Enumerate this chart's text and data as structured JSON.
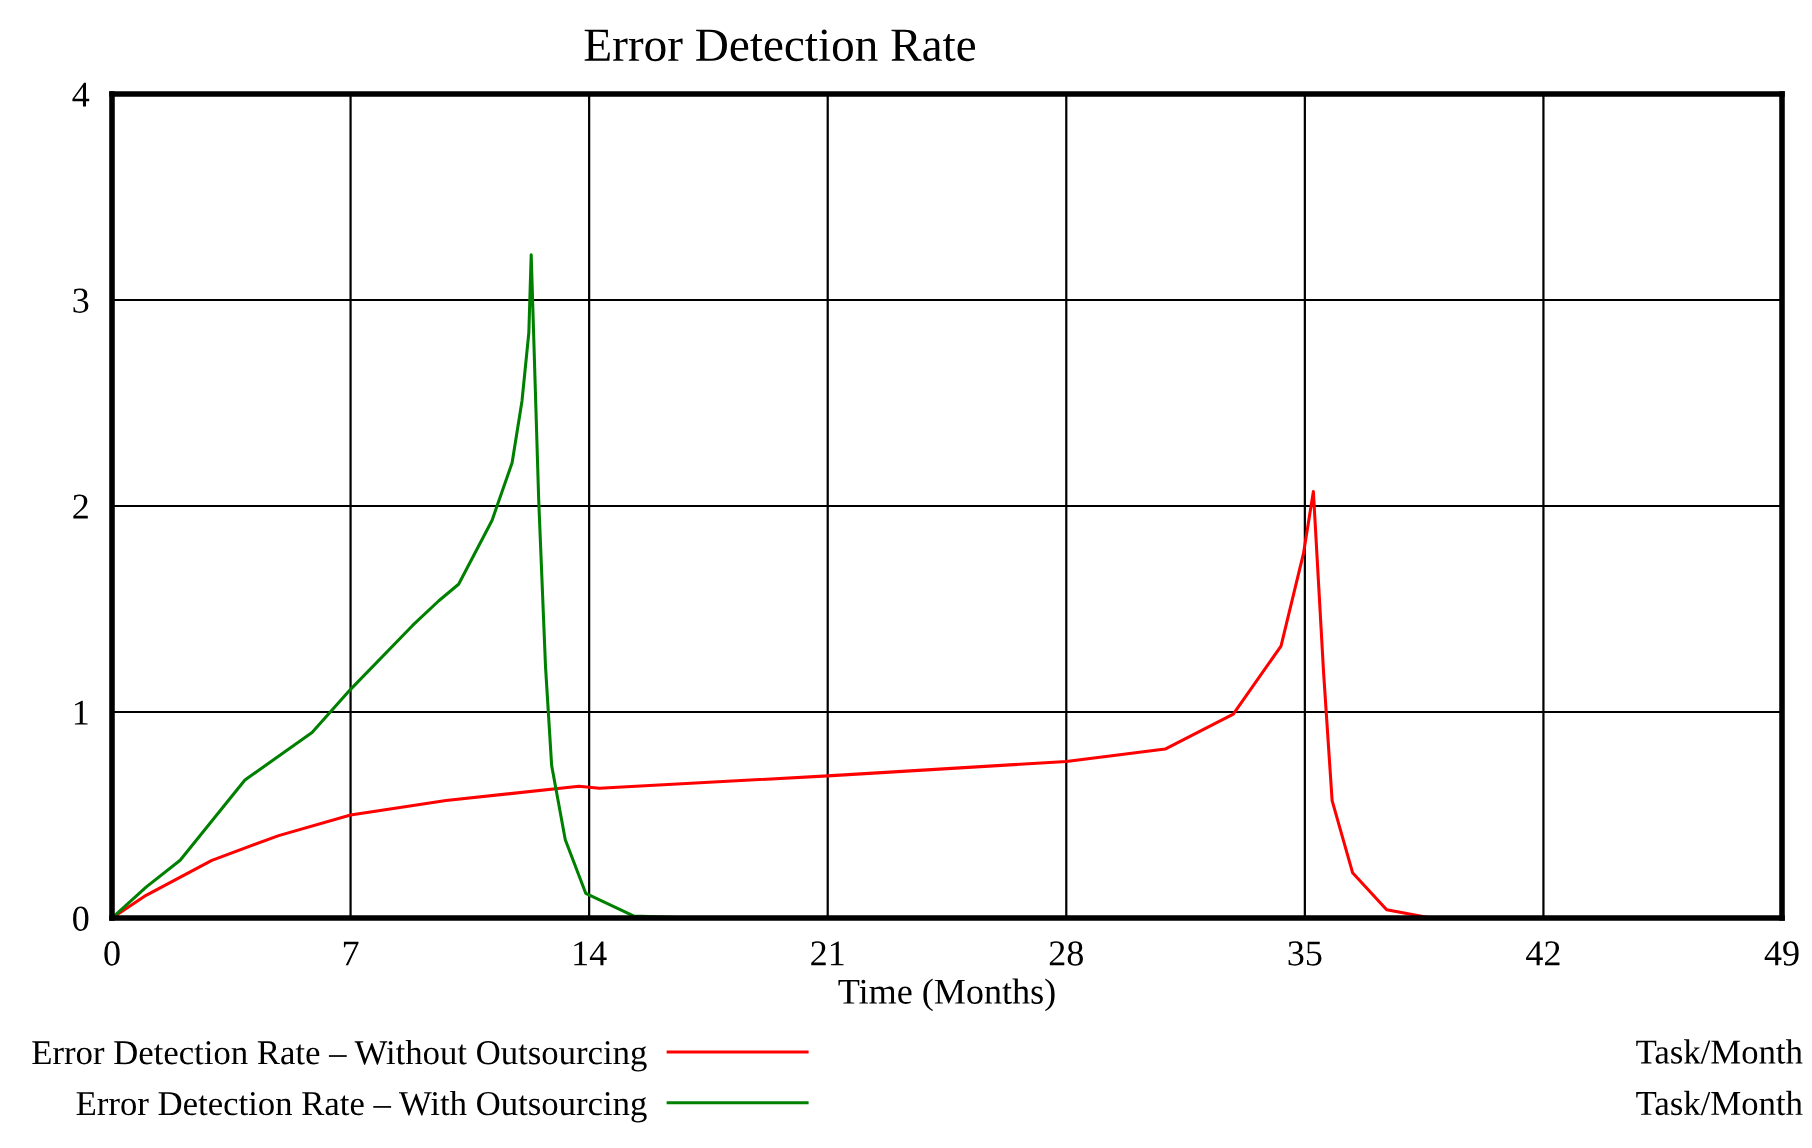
{
  "chart_data": {
    "type": "line",
    "title": "Error Detection Rate",
    "xlabel": "Time (Months)",
    "xlim": [
      0,
      49
    ],
    "xticks": [
      0,
      7,
      14,
      21,
      28,
      35,
      42,
      49
    ],
    "ylim": [
      0,
      4
    ],
    "yticks": [
      0,
      1,
      2,
      3,
      4
    ],
    "grid": true,
    "legend": "bottom left",
    "marker": "none",
    "line_style": "solid",
    "annotations": [
      "Task/Month",
      "Task/Month"
    ],
    "series": [
      {
        "name": "Error Detection Rate – Without Outsourcing",
        "color": "#ff0000",
        "x": [
          0,
          1.0,
          2.93,
          4.89,
          7.0,
          9.8,
          13.7,
          14.3,
          21.0,
          28.0,
          30.9,
          32.9,
          34.3,
          34.96,
          35.25,
          35.55,
          35.8,
          36.4,
          37.4,
          38.7,
          49
        ],
        "values": [
          0,
          0.11,
          0.28,
          0.4,
          0.5,
          0.57,
          0.64,
          0.63,
          0.69,
          0.76,
          0.82,
          0.99,
          1.32,
          1.77,
          2.07,
          1.19,
          0.57,
          0.22,
          0.04,
          0,
          0
        ]
      },
      {
        "name": "Error Detection Rate – With Outsourcing",
        "color": "#008000",
        "x": [
          0,
          1.0,
          2.0,
          3.9,
          5.87,
          7.0,
          8.82,
          9.59,
          10.17,
          11.15,
          11.74,
          12.03,
          12.23,
          12.3,
          12.52,
          12.72,
          12.9,
          13.3,
          13.9,
          15.3,
          17
        ],
        "values": [
          0,
          0.15,
          0.28,
          0.67,
          0.9,
          1.11,
          1.42,
          1.54,
          1.62,
          1.93,
          2.21,
          2.51,
          2.84,
          3.22,
          2.03,
          1.22,
          0.74,
          0.38,
          0.12,
          0.01,
          0
        ]
      }
    ]
  }
}
